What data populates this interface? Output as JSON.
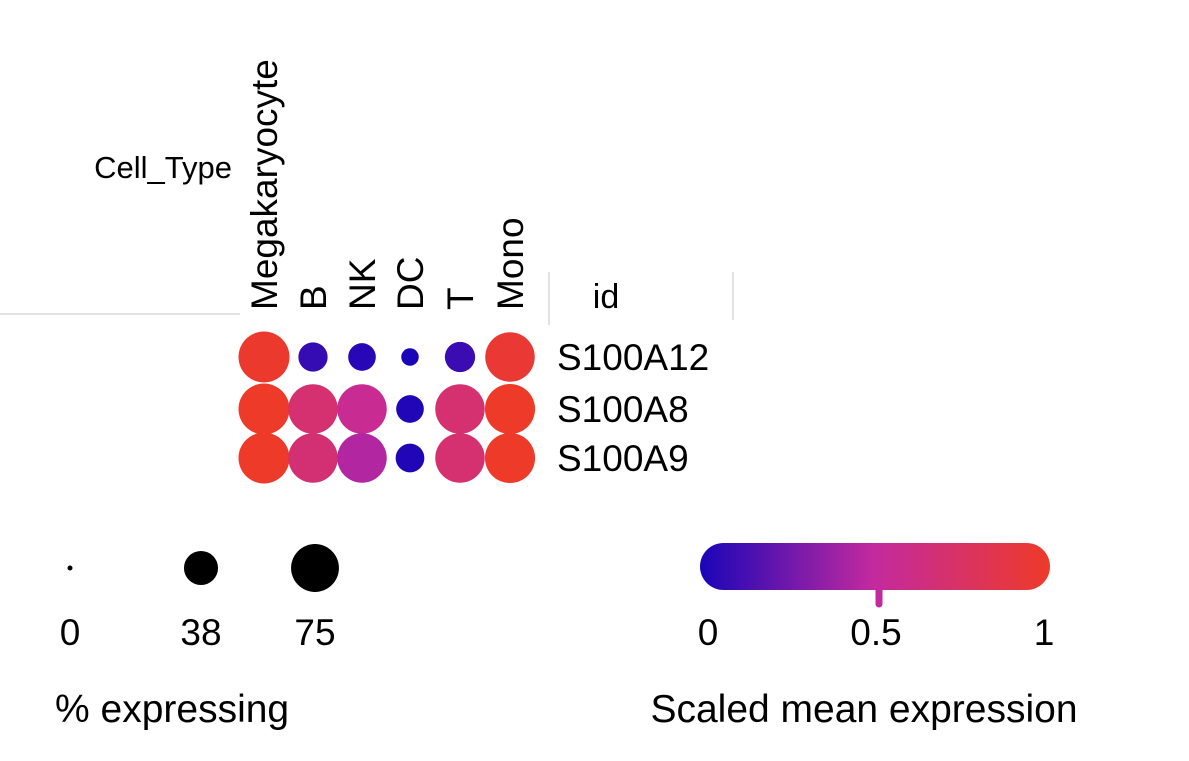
{
  "chart_data": {
    "type": "dotplot",
    "annotation_title": "Cell_Type",
    "row_header": "id",
    "categories": [
      "Megakaryocyte",
      "B",
      "NK",
      "DC",
      "T",
      "Mono"
    ],
    "genes": [
      "S100A12",
      "S100A8",
      "S100A9"
    ],
    "pct_expressing": [
      [
        85,
        28,
        25,
        10,
        30,
        80
      ],
      [
        85,
        80,
        80,
        25,
        80,
        82
      ],
      [
        85,
        80,
        80,
        27,
        80,
        82
      ]
    ],
    "scaled_mean_expression": [
      [
        0.98,
        0.08,
        0.04,
        0.0,
        0.1,
        0.95
      ],
      [
        1.0,
        0.7,
        0.55,
        0.02,
        0.7,
        1.0
      ],
      [
        1.0,
        0.68,
        0.45,
        0.02,
        0.7,
        1.0
      ]
    ],
    "size_legend": {
      "title": "% expressing",
      "values": [
        0,
        38,
        75
      ],
      "labels": [
        "0",
        "38",
        "75"
      ]
    },
    "color_legend": {
      "title": "Scaled mean expression",
      "range": [
        0,
        1
      ],
      "ticks": [
        0,
        0.5,
        1
      ],
      "tick_labels": [
        "0",
        "0.5",
        "1"
      ],
      "marker_value": 0.5,
      "colors": [
        "#1A05B8",
        "#C42A9E",
        "#EE3A28"
      ]
    }
  }
}
